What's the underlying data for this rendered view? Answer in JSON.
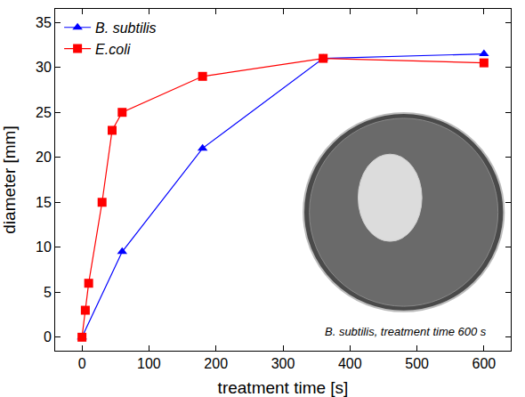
{
  "chart_data": {
    "type": "line",
    "xlabel": "treatment time [s]",
    "ylabel": "diameter [mm]",
    "xlim": [
      -40,
      640
    ],
    "xticks": [
      0,
      100,
      200,
      300,
      400,
      500,
      600
    ],
    "ylim": [
      -1.5,
      36.5
    ],
    "yticks": [
      0,
      5,
      10,
      15,
      20,
      25,
      30,
      35
    ],
    "grid": false,
    "legend": "upper left",
    "series": [
      {
        "name": "B. subtilis",
        "color": "#0000ff",
        "marker": "triangle-up",
        "x": [
          0,
          60,
          180,
          360,
          600
        ],
        "values": [
          0,
          9.5,
          21,
          31,
          31.5
        ]
      },
      {
        "name": "E.coli",
        "color": "#ff0000",
        "marker": "square",
        "x": [
          0,
          5,
          10,
          30,
          45,
          60,
          180,
          360,
          600
        ],
        "values": [
          0,
          3,
          6,
          15,
          23,
          25,
          29,
          31,
          30.5
        ]
      }
    ],
    "annotations": [
      {
        "text": "B. subtilis, treatment time 600 s"
      }
    ]
  }
}
